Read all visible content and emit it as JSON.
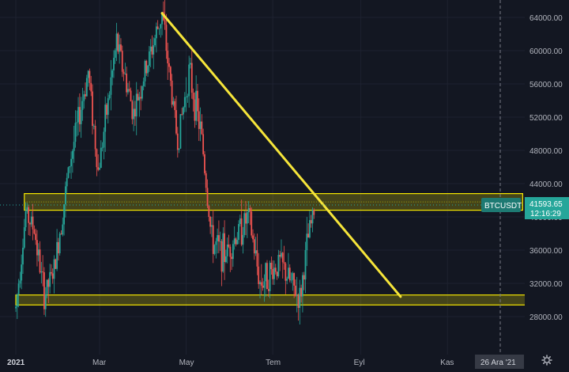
{
  "colors": {
    "background": "#131722",
    "up": "#26a69a",
    "down": "#ef5350",
    "zone_fill": "#f5e600",
    "trendline": "#f6e53a",
    "badge_bg": "#1e7a73",
    "grid": "#1e2230"
  },
  "price_axis": {
    "ticks": [
      "64000.00",
      "60000.00",
      "56000.00",
      "52000.00",
      "48000.00",
      "44000.00",
      "40000.00",
      "36000.00",
      "32000.00",
      "28000.00"
    ]
  },
  "time_axis": {
    "ticks": [
      "2021",
      "Mar",
      "May",
      "Tem",
      "Eyl",
      "Kas"
    ]
  },
  "cursor_date": "26 Ara '21",
  "last_price": {
    "symbol": "BTCUSDT",
    "value": "41593.65",
    "countdown": "12:16:29"
  },
  "icons": {
    "settings": "gear-icon"
  },
  "chart_data": {
    "type": "candlestick",
    "symbol": "BTCUSDT",
    "y_range": [
      25000,
      66000
    ],
    "x_range": [
      "2021-01-01",
      "2022-01-05"
    ],
    "candles": {
      "approx_close_path": [
        [
          "2021-01-01",
          29000
        ],
        [
          "2021-01-08",
          40500
        ],
        [
          "2021-01-14",
          38500
        ],
        [
          "2021-01-21",
          30500
        ],
        [
          "2021-01-28",
          33500
        ],
        [
          "2021-02-08",
          46500
        ],
        [
          "2021-02-21",
          57500
        ],
        [
          "2021-02-28",
          45500
        ],
        [
          "2021-03-13",
          61000
        ],
        [
          "2021-03-25",
          52500
        ],
        [
          "2021-04-14",
          64500
        ],
        [
          "2021-04-25",
          49000
        ],
        [
          "2021-05-03",
          57500
        ],
        [
          "2021-05-12",
          49500
        ],
        [
          "2021-05-19",
          37000
        ],
        [
          "2021-05-28",
          35500
        ],
        [
          "2021-06-14",
          40000
        ],
        [
          "2021-06-22",
          32000
        ],
        [
          "2021-07-06",
          34500
        ],
        [
          "2021-07-20",
          30000
        ],
        [
          "2021-07-26",
          37500
        ],
        [
          "2021-07-31",
          41500
        ]
      ]
    },
    "zones": [
      {
        "name": "resistance",
        "low": 40800,
        "high": 42800,
        "from": "2021-01-07",
        "to": "2021-12-24"
      },
      {
        "name": "support",
        "low": 29400,
        "high": 30600,
        "from": "2021-01-01",
        "to": "2021-12-26"
      }
    ],
    "trendline": {
      "from": [
        "2021-04-14",
        64500
      ],
      "to": [
        "2021-09-29",
        30400
      ]
    },
    "last_price": 41593.65
  }
}
